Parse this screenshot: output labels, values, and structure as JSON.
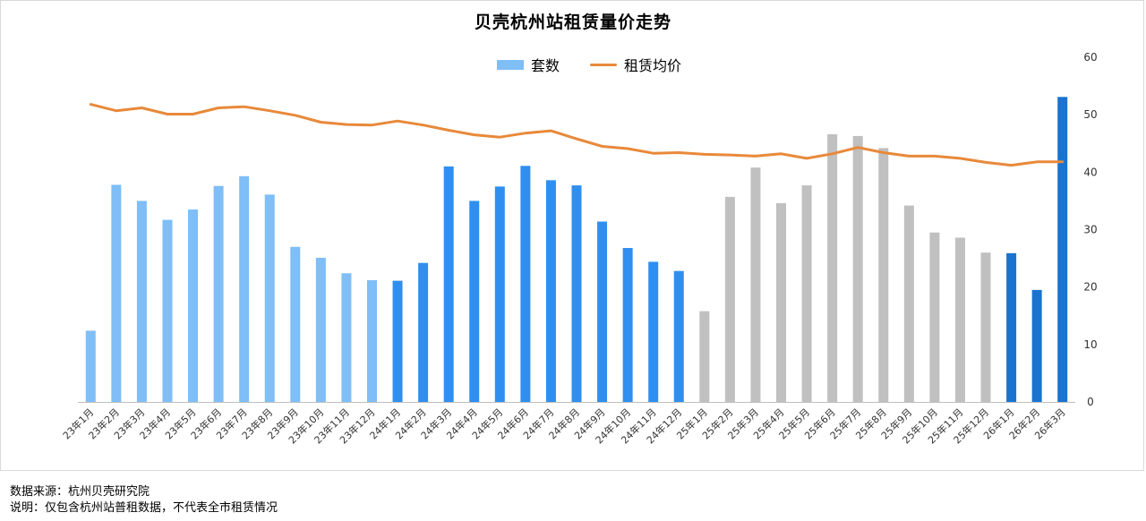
{
  "title": "贝壳杭州站租赁量价走势",
  "legend": {
    "bar_label": "套数",
    "line_label": "租赁均价"
  },
  "colors": {
    "bar_2023": "#7fbef6",
    "bar_2024": "#2f8ff0",
    "bar_2025": "#c0c0c0",
    "bar_2026": "#1a73cf",
    "line": "#e8893a",
    "axis": "#bfbfbf"
  },
  "chart_data": {
    "type": "bar",
    "categories": [
      "23年1月",
      "23年2月",
      "23年3月",
      "23年4月",
      "23年5月",
      "23年6月",
      "23年7月",
      "23年8月",
      "23年9月",
      "23年10月",
      "23年11月",
      "23年12月",
      "24年1月",
      "24年2月",
      "24年3月",
      "24年4月",
      "24年5月",
      "24年6月",
      "24年7月",
      "24年8月",
      "24年9月",
      "24年10月",
      "24年11月",
      "24年12月",
      "25年1月",
      "25年2月",
      "25年3月",
      "25年4月",
      "25年5月",
      "25年6月",
      "25年7月",
      "25年8月",
      "25年9月",
      "25年10月",
      "25年11月",
      "25年12月",
      "26年1月",
      "26年2月",
      "26年3月"
    ],
    "series": [
      {
        "name": "套数",
        "type": "bar",
        "values": [
          12.4,
          37.8,
          35.0,
          31.7,
          33.5,
          37.6,
          39.3,
          36.1,
          27.0,
          25.1,
          22.4,
          21.2,
          21.1,
          24.2,
          41.0,
          35.0,
          37.5,
          41.1,
          38.6,
          37.7,
          31.4,
          26.8,
          24.4,
          22.8,
          15.8,
          35.7,
          40.8,
          34.6,
          37.7,
          46.6,
          46.3,
          44.2,
          34.2,
          29.5,
          28.6,
          26.0,
          25.9,
          19.5,
          53.1
        ]
      },
      {
        "name": "租赁均价",
        "type": "line",
        "values": [
          51.8,
          50.7,
          51.2,
          50.1,
          50.1,
          51.2,
          51.4,
          50.7,
          49.9,
          48.7,
          48.3,
          48.2,
          48.9,
          48.2,
          47.3,
          46.5,
          46.1,
          46.8,
          47.2,
          45.8,
          44.5,
          44.1,
          43.3,
          43.4,
          43.1,
          43.0,
          42.8,
          43.2,
          42.4,
          43.2,
          44.3,
          43.4,
          42.8,
          42.8,
          42.4,
          41.7,
          41.2,
          41.8,
          41.8
        ]
      }
    ],
    "yaxis_right": {
      "min": 0,
      "max": 60,
      "ticks": [
        "0",
        "10",
        "20",
        "30",
        "40",
        "50",
        "60"
      ]
    },
    "grid": false,
    "legend_position": "top-center"
  },
  "footer": {
    "source": "数据来源：杭州贝壳研究院",
    "note": "说明：仅包含杭州站普租数据，不代表全市租赁情况"
  }
}
